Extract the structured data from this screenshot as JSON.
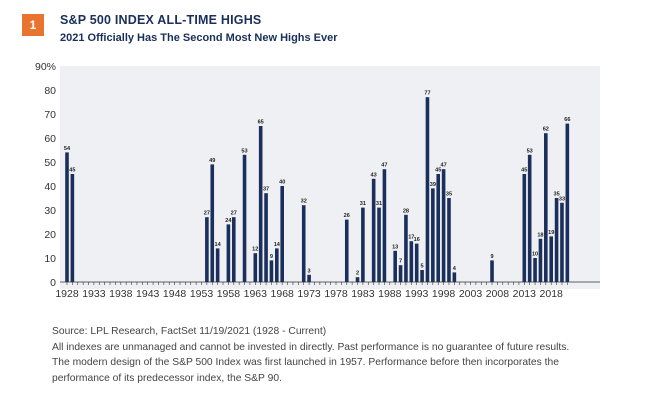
{
  "badge": "1",
  "title": "S&P 500 INDEX ALL-TIME HIGHS",
  "subtitle": "2021 Officially Has The Second Most New Highs Ever",
  "colors": {
    "bar": "#1b2f5c",
    "plot_bg": "#eef0f4",
    "badge": "#e8742f",
    "title": "#1a2f5a"
  },
  "chart_data": {
    "type": "bar",
    "title": "",
    "xlabel": "",
    "ylabel": "",
    "ylim": [
      0,
      90
    ],
    "y_ticks": [
      "0",
      "10",
      "20",
      "30",
      "40",
      "50",
      "60",
      "70",
      "80",
      "90%"
    ],
    "x_ticks": [
      1928,
      1933,
      1938,
      1943,
      1948,
      1953,
      1958,
      1963,
      1968,
      1973,
      1978,
      1983,
      1988,
      1993,
      1998,
      2003,
      2008,
      2013,
      2018
    ],
    "grid": false,
    "x_range": [
      1928,
      2021
    ],
    "values": [
      {
        "year": 1928,
        "value": 54
      },
      {
        "year": 1929,
        "value": 45
      },
      {
        "year": 1954,
        "value": 27
      },
      {
        "year": 1955,
        "value": 49
      },
      {
        "year": 1956,
        "value": 14
      },
      {
        "year": 1958,
        "value": 24
      },
      {
        "year": 1959,
        "value": 27
      },
      {
        "year": 1961,
        "value": 53
      },
      {
        "year": 1963,
        "value": 12
      },
      {
        "year": 1964,
        "value": 65
      },
      {
        "year": 1965,
        "value": 37
      },
      {
        "year": 1966,
        "value": 9
      },
      {
        "year": 1967,
        "value": 14
      },
      {
        "year": 1968,
        "value": 40
      },
      {
        "year": 1972,
        "value": 32
      },
      {
        "year": 1973,
        "value": 3
      },
      {
        "year": 1980,
        "value": 26
      },
      {
        "year": 1982,
        "value": 2
      },
      {
        "year": 1983,
        "value": 31
      },
      {
        "year": 1985,
        "value": 43
      },
      {
        "year": 1986,
        "value": 31
      },
      {
        "year": 1987,
        "value": 47
      },
      {
        "year": 1989,
        "value": 13
      },
      {
        "year": 1990,
        "value": 7
      },
      {
        "year": 1991,
        "value": 28
      },
      {
        "year": 1992,
        "value": 17
      },
      {
        "year": 1993,
        "value": 16
      },
      {
        "year": 1994,
        "value": 5
      },
      {
        "year": 1995,
        "value": 77
      },
      {
        "year": 1996,
        "value": 39
      },
      {
        "year": 1997,
        "value": 45
      },
      {
        "year": 1998,
        "value": 47
      },
      {
        "year": 1999,
        "value": 35
      },
      {
        "year": 2000,
        "value": 4
      },
      {
        "year": 2007,
        "value": 9
      },
      {
        "year": 2013,
        "value": 45
      },
      {
        "year": 2014,
        "value": 53
      },
      {
        "year": 2015,
        "value": 10
      },
      {
        "year": 2016,
        "value": 18
      },
      {
        "year": 2017,
        "value": 62
      },
      {
        "year": 2018,
        "value": 19
      },
      {
        "year": 2019,
        "value": 35
      },
      {
        "year": 2020,
        "value": 33
      },
      {
        "year": 2021,
        "value": 66
      }
    ]
  },
  "notes": {
    "source": "Source: LPL Research, FactSet  11/19/2021 (1928 - Current)",
    "disclaimer": "All indexes are unmanaged and cannot be invested in directly. Past performance is no guarantee of future results.",
    "design_note": "The modern design of the S&P 500 Index was first launched in 1957. Performance before then incorporates the performance of its predecessor index, the S&P 90."
  }
}
